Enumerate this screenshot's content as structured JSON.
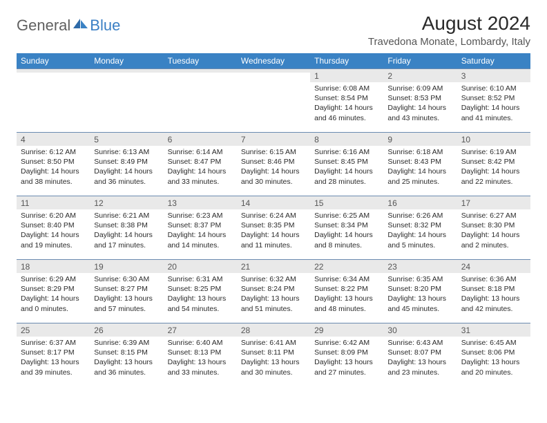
{
  "logo": {
    "general": "General",
    "blue": "Blue"
  },
  "title": "August 2024",
  "location": "Travedona Monate, Lombardy, Italy",
  "colors": {
    "header_bg": "#3a82c4",
    "header_fg": "#ffffff",
    "daynum_bg": "#e9e9e9",
    "border": "#6a8ab0",
    "logo_gray": "#606060",
    "logo_blue": "#3a7fc4"
  },
  "day_headers": [
    "Sunday",
    "Monday",
    "Tuesday",
    "Wednesday",
    "Thursday",
    "Friday",
    "Saturday"
  ],
  "weeks": [
    [
      {
        "date": "",
        "sunrise": "",
        "sunset": "",
        "daylight": ""
      },
      {
        "date": "",
        "sunrise": "",
        "sunset": "",
        "daylight": ""
      },
      {
        "date": "",
        "sunrise": "",
        "sunset": "",
        "daylight": ""
      },
      {
        "date": "",
        "sunrise": "",
        "sunset": "",
        "daylight": ""
      },
      {
        "date": "1",
        "sunrise": "Sunrise: 6:08 AM",
        "sunset": "Sunset: 8:54 PM",
        "daylight": "Daylight: 14 hours and 46 minutes."
      },
      {
        "date": "2",
        "sunrise": "Sunrise: 6:09 AM",
        "sunset": "Sunset: 8:53 PM",
        "daylight": "Daylight: 14 hours and 43 minutes."
      },
      {
        "date": "3",
        "sunrise": "Sunrise: 6:10 AM",
        "sunset": "Sunset: 8:52 PM",
        "daylight": "Daylight: 14 hours and 41 minutes."
      }
    ],
    [
      {
        "date": "4",
        "sunrise": "Sunrise: 6:12 AM",
        "sunset": "Sunset: 8:50 PM",
        "daylight": "Daylight: 14 hours and 38 minutes."
      },
      {
        "date": "5",
        "sunrise": "Sunrise: 6:13 AM",
        "sunset": "Sunset: 8:49 PM",
        "daylight": "Daylight: 14 hours and 36 minutes."
      },
      {
        "date": "6",
        "sunrise": "Sunrise: 6:14 AM",
        "sunset": "Sunset: 8:47 PM",
        "daylight": "Daylight: 14 hours and 33 minutes."
      },
      {
        "date": "7",
        "sunrise": "Sunrise: 6:15 AM",
        "sunset": "Sunset: 8:46 PM",
        "daylight": "Daylight: 14 hours and 30 minutes."
      },
      {
        "date": "8",
        "sunrise": "Sunrise: 6:16 AM",
        "sunset": "Sunset: 8:45 PM",
        "daylight": "Daylight: 14 hours and 28 minutes."
      },
      {
        "date": "9",
        "sunrise": "Sunrise: 6:18 AM",
        "sunset": "Sunset: 8:43 PM",
        "daylight": "Daylight: 14 hours and 25 minutes."
      },
      {
        "date": "10",
        "sunrise": "Sunrise: 6:19 AM",
        "sunset": "Sunset: 8:42 PM",
        "daylight": "Daylight: 14 hours and 22 minutes."
      }
    ],
    [
      {
        "date": "11",
        "sunrise": "Sunrise: 6:20 AM",
        "sunset": "Sunset: 8:40 PM",
        "daylight": "Daylight: 14 hours and 19 minutes."
      },
      {
        "date": "12",
        "sunrise": "Sunrise: 6:21 AM",
        "sunset": "Sunset: 8:38 PM",
        "daylight": "Daylight: 14 hours and 17 minutes."
      },
      {
        "date": "13",
        "sunrise": "Sunrise: 6:23 AM",
        "sunset": "Sunset: 8:37 PM",
        "daylight": "Daylight: 14 hours and 14 minutes."
      },
      {
        "date": "14",
        "sunrise": "Sunrise: 6:24 AM",
        "sunset": "Sunset: 8:35 PM",
        "daylight": "Daylight: 14 hours and 11 minutes."
      },
      {
        "date": "15",
        "sunrise": "Sunrise: 6:25 AM",
        "sunset": "Sunset: 8:34 PM",
        "daylight": "Daylight: 14 hours and 8 minutes."
      },
      {
        "date": "16",
        "sunrise": "Sunrise: 6:26 AM",
        "sunset": "Sunset: 8:32 PM",
        "daylight": "Daylight: 14 hours and 5 minutes."
      },
      {
        "date": "17",
        "sunrise": "Sunrise: 6:27 AM",
        "sunset": "Sunset: 8:30 PM",
        "daylight": "Daylight: 14 hours and 2 minutes."
      }
    ],
    [
      {
        "date": "18",
        "sunrise": "Sunrise: 6:29 AM",
        "sunset": "Sunset: 8:29 PM",
        "daylight": "Daylight: 14 hours and 0 minutes."
      },
      {
        "date": "19",
        "sunrise": "Sunrise: 6:30 AM",
        "sunset": "Sunset: 8:27 PM",
        "daylight": "Daylight: 13 hours and 57 minutes."
      },
      {
        "date": "20",
        "sunrise": "Sunrise: 6:31 AM",
        "sunset": "Sunset: 8:25 PM",
        "daylight": "Daylight: 13 hours and 54 minutes."
      },
      {
        "date": "21",
        "sunrise": "Sunrise: 6:32 AM",
        "sunset": "Sunset: 8:24 PM",
        "daylight": "Daylight: 13 hours and 51 minutes."
      },
      {
        "date": "22",
        "sunrise": "Sunrise: 6:34 AM",
        "sunset": "Sunset: 8:22 PM",
        "daylight": "Daylight: 13 hours and 48 minutes."
      },
      {
        "date": "23",
        "sunrise": "Sunrise: 6:35 AM",
        "sunset": "Sunset: 8:20 PM",
        "daylight": "Daylight: 13 hours and 45 minutes."
      },
      {
        "date": "24",
        "sunrise": "Sunrise: 6:36 AM",
        "sunset": "Sunset: 8:18 PM",
        "daylight": "Daylight: 13 hours and 42 minutes."
      }
    ],
    [
      {
        "date": "25",
        "sunrise": "Sunrise: 6:37 AM",
        "sunset": "Sunset: 8:17 PM",
        "daylight": "Daylight: 13 hours and 39 minutes."
      },
      {
        "date": "26",
        "sunrise": "Sunrise: 6:39 AM",
        "sunset": "Sunset: 8:15 PM",
        "daylight": "Daylight: 13 hours and 36 minutes."
      },
      {
        "date": "27",
        "sunrise": "Sunrise: 6:40 AM",
        "sunset": "Sunset: 8:13 PM",
        "daylight": "Daylight: 13 hours and 33 minutes."
      },
      {
        "date": "28",
        "sunrise": "Sunrise: 6:41 AM",
        "sunset": "Sunset: 8:11 PM",
        "daylight": "Daylight: 13 hours and 30 minutes."
      },
      {
        "date": "29",
        "sunrise": "Sunrise: 6:42 AM",
        "sunset": "Sunset: 8:09 PM",
        "daylight": "Daylight: 13 hours and 27 minutes."
      },
      {
        "date": "30",
        "sunrise": "Sunrise: 6:43 AM",
        "sunset": "Sunset: 8:07 PM",
        "daylight": "Daylight: 13 hours and 23 minutes."
      },
      {
        "date": "31",
        "sunrise": "Sunrise: 6:45 AM",
        "sunset": "Sunset: 8:06 PM",
        "daylight": "Daylight: 13 hours and 20 minutes."
      }
    ]
  ]
}
